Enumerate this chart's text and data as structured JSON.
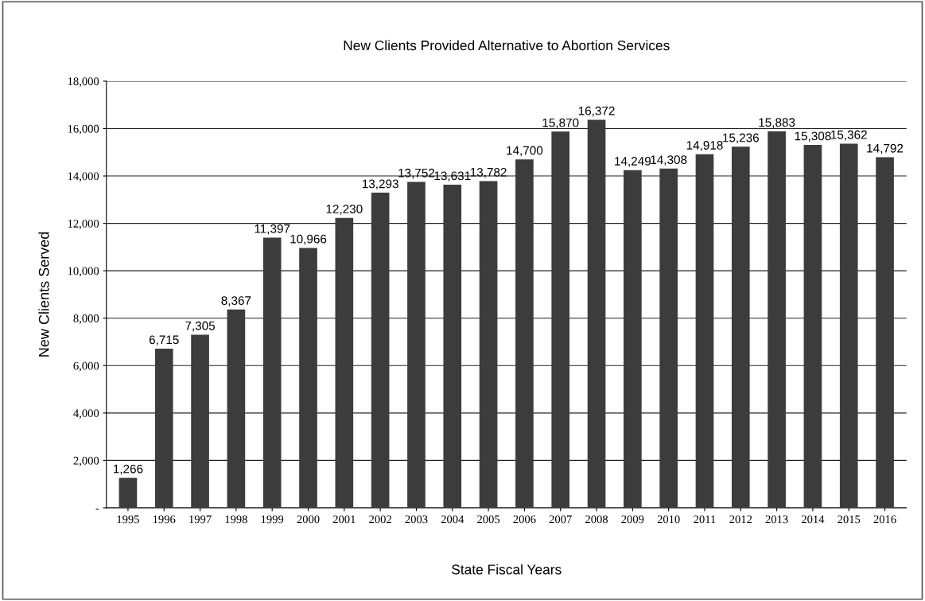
{
  "chart_data": {
    "type": "bar",
    "title": "New Clients Provided Alternative to Abortion Services",
    "xlabel": "State Fiscal Years",
    "ylabel": "New Clients Served",
    "categories": [
      "1995",
      "1996",
      "1997",
      "1998",
      "1999",
      "2000",
      "2001",
      "2002",
      "2003",
      "2004",
      "2005",
      "2006",
      "2007",
      "2008",
      "2009",
      "2010",
      "2011",
      "2012",
      "2013",
      "2014",
      "2015",
      "2016"
    ],
    "values": [
      1266,
      6715,
      7305,
      8367,
      11397,
      10966,
      12230,
      13293,
      13752,
      13631,
      13782,
      14700,
      15870,
      16372,
      14249,
      14308,
      14918,
      15236,
      15883,
      15308,
      15362,
      14792
    ],
    "value_labels": [
      "1,266",
      "6,715",
      "7,305",
      "8,367",
      "11,397",
      "10,966",
      "12,230",
      "13,293",
      "13,752",
      "13,631",
      "13,782",
      "14,700",
      "15,870",
      "16,372",
      "14,249",
      "14,308",
      "14,918",
      "15,236",
      "15,883",
      "15,308",
      "15,362",
      "14,792"
    ],
    "color": "#3c3c3c",
    "ylim": [
      0,
      18000
    ],
    "yticks": [
      {
        "value": 0,
        "label": "-"
      },
      {
        "value": 2000,
        "label": "2,000"
      },
      {
        "value": 4000,
        "label": "4,000"
      },
      {
        "value": 6000,
        "label": "6,000"
      },
      {
        "value": 8000,
        "label": "8,000"
      },
      {
        "value": 10000,
        "label": "10,000"
      },
      {
        "value": 12000,
        "label": "12,000"
      },
      {
        "value": 14000,
        "label": "14,000"
      },
      {
        "value": 16000,
        "label": "16,000"
      },
      {
        "value": 18000,
        "label": "18,000"
      }
    ],
    "grid": "y"
  }
}
